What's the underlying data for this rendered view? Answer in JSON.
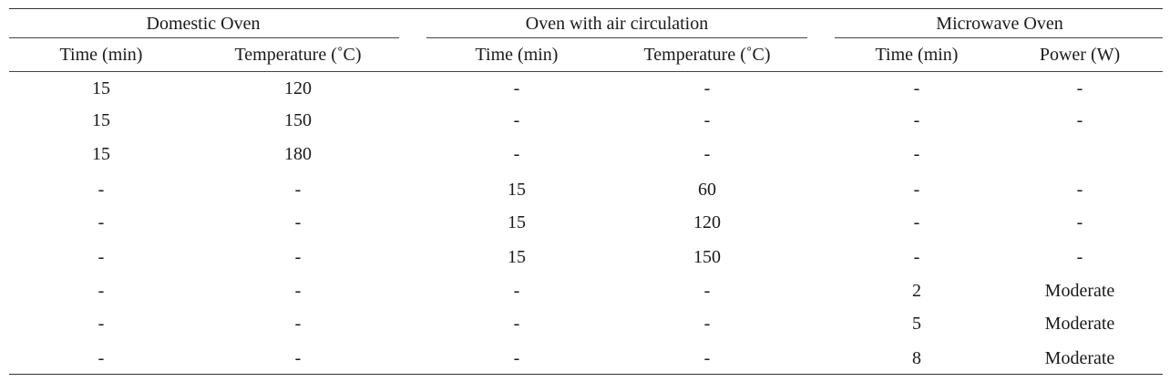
{
  "table": {
    "groups": [
      {
        "label": "Domestic Oven"
      },
      {
        "label": "Oven with air circulation"
      },
      {
        "label": "Microwave Oven"
      }
    ],
    "columns": [
      {
        "label": "Time (min)"
      },
      {
        "label": "Temperature (˚C)"
      },
      {
        "label": "Time (min)"
      },
      {
        "label": "Temperature (˚C)"
      },
      {
        "label": "Time (min)"
      },
      {
        "label": "Power (W)"
      }
    ],
    "rows": [
      [
        "15",
        "120",
        "-",
        "-",
        "-",
        "-"
      ],
      [
        "15",
        "150",
        "-",
        "-",
        "-",
        "-"
      ],
      [
        "15",
        "180",
        "-",
        "-",
        "-",
        ""
      ],
      [
        "-",
        "-",
        "15",
        "60",
        "-",
        "-"
      ],
      [
        "-",
        "-",
        "15",
        "120",
        "-",
        "-"
      ],
      [
        "-",
        "-",
        "15",
        "150",
        "-",
        "-"
      ],
      [
        "-",
        "-",
        "-",
        "-",
        "2",
        "Moderate"
      ],
      [
        "-",
        "-",
        "-",
        "-",
        "5",
        "Moderate"
      ],
      [
        "-",
        "-",
        "-",
        "-",
        "8",
        "Moderate"
      ]
    ]
  }
}
